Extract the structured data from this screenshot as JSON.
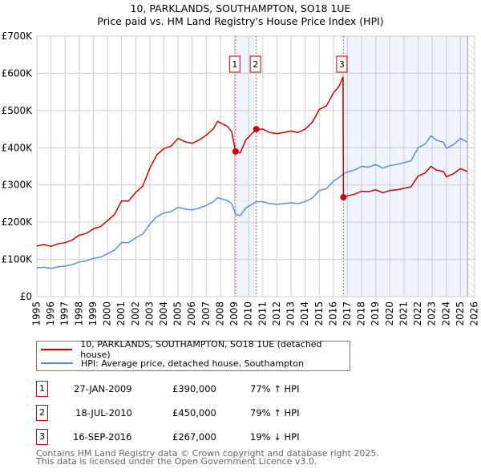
{
  "chart_data": {
    "type": "line",
    "title": "10, PARKLANDS, SOUTHAMPTON, SO18 1UE",
    "subtitle": "Price paid vs. HM Land Registry's House Price Index (HPI)",
    "xlim": [
      1995,
      2026
    ],
    "ylim": [
      0,
      700000
    ],
    "x_ticks": [
      "1995",
      "1996",
      "1997",
      "1998",
      "1999",
      "2000",
      "2001",
      "2002",
      "2003",
      "2004",
      "2005",
      "2006",
      "2007",
      "2008",
      "2009",
      "2010",
      "2011",
      "2012",
      "2013",
      "2014",
      "2015",
      "2016",
      "2017",
      "2018",
      "2019",
      "2020",
      "2021",
      "2022",
      "2023",
      "2024",
      "2025",
      "2026"
    ],
    "y_ticks": [
      {
        "v": 0,
        "label": "£0"
      },
      {
        "v": 100000,
        "label": "£100K"
      },
      {
        "v": 200000,
        "label": "£200K"
      },
      {
        "v": 300000,
        "label": "£300K"
      },
      {
        "v": 400000,
        "label": "£400K"
      },
      {
        "v": 500000,
        "label": "£500K"
      },
      {
        "v": 600000,
        "label": "£600K"
      },
      {
        "v": 700000,
        "label": "£700K"
      }
    ],
    "grid": true,
    "colors": {
      "price": "#cc0000",
      "hpi": "#5b8fd6",
      "shade": "#eef3fc"
    },
    "shaded_ranges": [
      [
        2009.07,
        2010.54
      ],
      [
        2016.71,
        2025.5
      ]
    ],
    "forecast_hatch_from": 2025.5,
    "series": [
      {
        "name": "10, PARKLANDS, SOUTHAMPTON, SO18 1UE (detached house)",
        "key": "price",
        "points": [
          [
            1995,
            136
          ],
          [
            1995.5,
            140
          ],
          [
            1996,
            135
          ],
          [
            1996.5,
            142
          ],
          [
            1997,
            145
          ],
          [
            1997.5,
            152
          ],
          [
            1998,
            165
          ],
          [
            1998.5,
            170
          ],
          [
            1999,
            182
          ],
          [
            1999.5,
            188
          ],
          [
            2000,
            204
          ],
          [
            2000.5,
            221
          ],
          [
            2001,
            257
          ],
          [
            2001.5,
            257
          ],
          [
            2002,
            280
          ],
          [
            2002.5,
            297
          ],
          [
            2003,
            345
          ],
          [
            2003.5,
            381
          ],
          [
            2004,
            398
          ],
          [
            2004.5,
            404
          ],
          [
            2005,
            425
          ],
          [
            2005.5,
            416
          ],
          [
            2006,
            412
          ],
          [
            2006.5,
            421
          ],
          [
            2007,
            434
          ],
          [
            2007.5,
            451
          ],
          [
            2007.8,
            471
          ],
          [
            2008.5,
            457
          ],
          [
            2008.8,
            443
          ],
          [
            2009.07,
            390
          ],
          [
            2009.4,
            386
          ],
          [
            2009.8,
            421
          ],
          [
            2010.54,
            450
          ],
          [
            2011,
            450
          ],
          [
            2011.5,
            441
          ],
          [
            2012,
            438
          ],
          [
            2012.5,
            441
          ],
          [
            2013,
            445
          ],
          [
            2013.5,
            441
          ],
          [
            2014,
            450
          ],
          [
            2014.5,
            468
          ],
          [
            2015,
            503
          ],
          [
            2015.5,
            512
          ],
          [
            2016,
            547
          ],
          [
            2016.4,
            565
          ],
          [
            2016.68,
            590
          ],
          [
            2016.71,
            267
          ],
          [
            2017,
            271
          ],
          [
            2017.5,
            275
          ],
          [
            2018,
            283
          ],
          [
            2018.5,
            282
          ],
          [
            2019,
            287
          ],
          [
            2019.5,
            279
          ],
          [
            2020,
            285
          ],
          [
            2020.5,
            287
          ],
          [
            2021,
            291
          ],
          [
            2021.5,
            295
          ],
          [
            2022,
            324
          ],
          [
            2022.5,
            332
          ],
          [
            2022.9,
            350
          ],
          [
            2023.3,
            340
          ],
          [
            2023.8,
            336
          ],
          [
            2024,
            322
          ],
          [
            2024.5,
            330
          ],
          [
            2025,
            344
          ],
          [
            2025.5,
            336
          ]
        ]
      },
      {
        "name": "HPI: Average price, detached house, Southampton",
        "key": "hpi",
        "points": [
          [
            1995,
            77
          ],
          [
            1995.5,
            79
          ],
          [
            1996,
            76
          ],
          [
            1996.5,
            80
          ],
          [
            1997,
            82
          ],
          [
            1997.5,
            86
          ],
          [
            1998,
            93
          ],
          [
            1998.5,
            96
          ],
          [
            1999,
            103
          ],
          [
            1999.5,
            106
          ],
          [
            2000,
            115
          ],
          [
            2000.5,
            125
          ],
          [
            2001,
            145
          ],
          [
            2001.5,
            145
          ],
          [
            2002,
            158
          ],
          [
            2002.5,
            168
          ],
          [
            2003,
            195
          ],
          [
            2003.5,
            215
          ],
          [
            2004,
            225
          ],
          [
            2004.5,
            228
          ],
          [
            2005,
            240
          ],
          [
            2005.5,
            235
          ],
          [
            2006,
            233
          ],
          [
            2006.5,
            238
          ],
          [
            2007,
            245
          ],
          [
            2007.5,
            255
          ],
          [
            2007.8,
            266
          ],
          [
            2008.5,
            258
          ],
          [
            2008.8,
            250
          ],
          [
            2009.1,
            220
          ],
          [
            2009.4,
            218
          ],
          [
            2009.8,
            238
          ],
          [
            2010.54,
            255
          ],
          [
            2011,
            255
          ],
          [
            2011.5,
            250
          ],
          [
            2012,
            248
          ],
          [
            2012.5,
            250
          ],
          [
            2013,
            252
          ],
          [
            2013.5,
            250
          ],
          [
            2014,
            255
          ],
          [
            2014.5,
            265
          ],
          [
            2015,
            285
          ],
          [
            2015.5,
            290
          ],
          [
            2016,
            310
          ],
          [
            2016.4,
            320
          ],
          [
            2016.71,
            330
          ],
          [
            2017,
            335
          ],
          [
            2017.5,
            340
          ],
          [
            2018,
            350
          ],
          [
            2018.5,
            348
          ],
          [
            2019,
            355
          ],
          [
            2019.5,
            345
          ],
          [
            2020,
            352
          ],
          [
            2020.5,
            355
          ],
          [
            2021,
            360
          ],
          [
            2021.5,
            365
          ],
          [
            2022,
            400
          ],
          [
            2022.5,
            410
          ],
          [
            2022.9,
            432
          ],
          [
            2023.3,
            420
          ],
          [
            2023.8,
            415
          ],
          [
            2024,
            398
          ],
          [
            2024.5,
            408
          ],
          [
            2025,
            425
          ],
          [
            2025.5,
            415
          ]
        ]
      }
    ],
    "y_unit": "thousand GBP",
    "sales": [
      {
        "label": "1",
        "x": 2009.07,
        "y": 390,
        "date": "27-JAN-2009",
        "price": "£390,000",
        "hpi": "77% ↑ HPI"
      },
      {
        "label": "2",
        "x": 2010.54,
        "y": 450,
        "date": "18-JUL-2010",
        "price": "£450,000",
        "hpi": "79% ↑ HPI"
      },
      {
        "label": "3",
        "x": 2016.71,
        "y": 267,
        "date": "16-SEP-2016",
        "price": "£267,000",
        "hpi": "19% ↓ HPI"
      }
    ]
  },
  "footer": {
    "line1": "Contains HM Land Registry data © Crown copyright and database right 2025.",
    "line2": "This data is licensed under the Open Government Licence v3.0."
  }
}
